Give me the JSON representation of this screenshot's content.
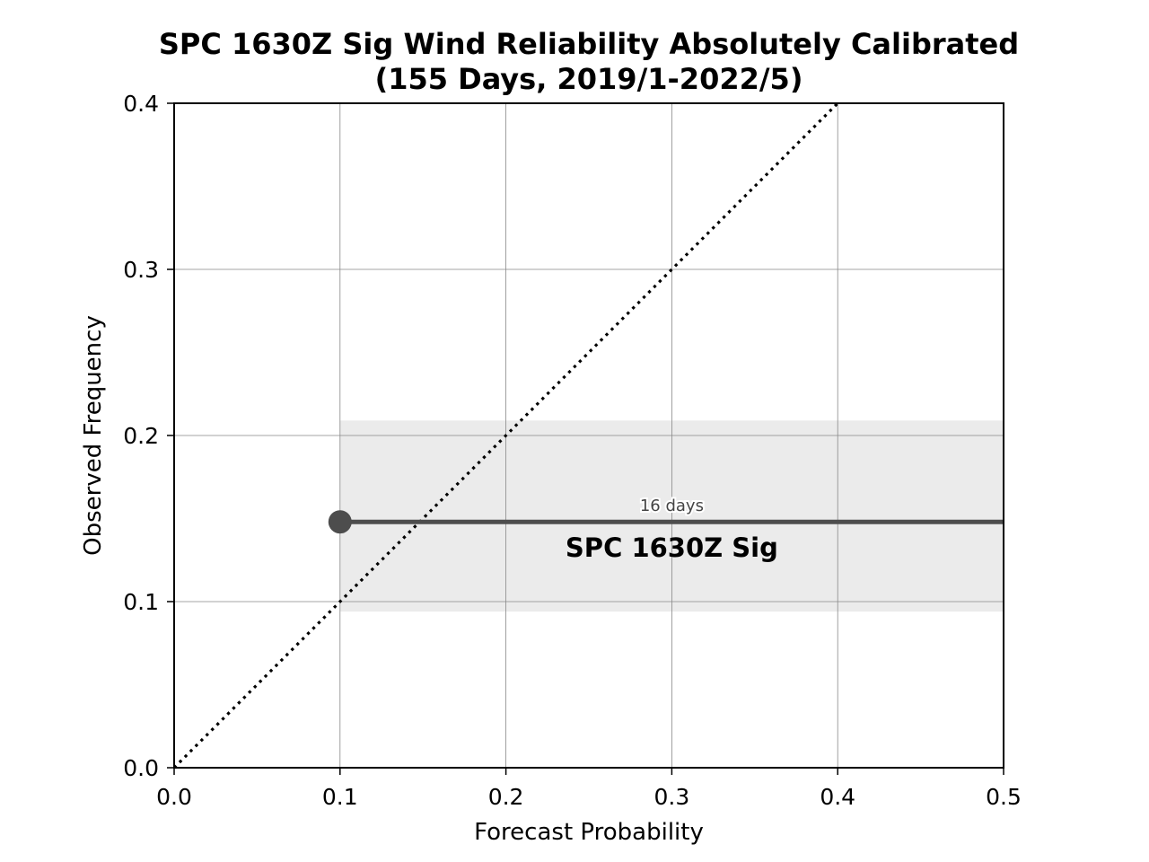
{
  "chart_data": {
    "type": "line",
    "title_line1": "SPC 1630Z Sig Wind Reliability Absolutely Calibrated",
    "title_line2": "(155 Days, 2019/1-2022/5)",
    "xlabel": "Forecast Probability",
    "ylabel": "Observed Frequency",
    "xlim": [
      0.0,
      0.5
    ],
    "ylim": [
      0.0,
      0.4
    ],
    "xticks": [
      "0.0",
      "0.1",
      "0.2",
      "0.3",
      "0.4",
      "0.5"
    ],
    "yticks": [
      "0.0",
      "0.1",
      "0.2",
      "0.3",
      "0.4"
    ],
    "grid": true,
    "reference_line": {
      "style": "dotted",
      "from": [
        0.0,
        0.0
      ],
      "to": [
        0.4,
        0.4
      ],
      "color": "#000000"
    },
    "series": [
      {
        "name": "SPC 1630Z Sig",
        "color": "#4d4d4d",
        "points": [
          {
            "x": 0.1,
            "y": 0.148
          }
        ],
        "line_to_x": 0.5,
        "confidence_band": {
          "x_from": 0.1,
          "x_to": 0.5,
          "y_low": 0.094,
          "y_high": 0.209,
          "color": "#ebebeb"
        },
        "count_label": "16 days",
        "count_label_at": {
          "x": 0.3,
          "y": 0.148
        }
      }
    ]
  }
}
